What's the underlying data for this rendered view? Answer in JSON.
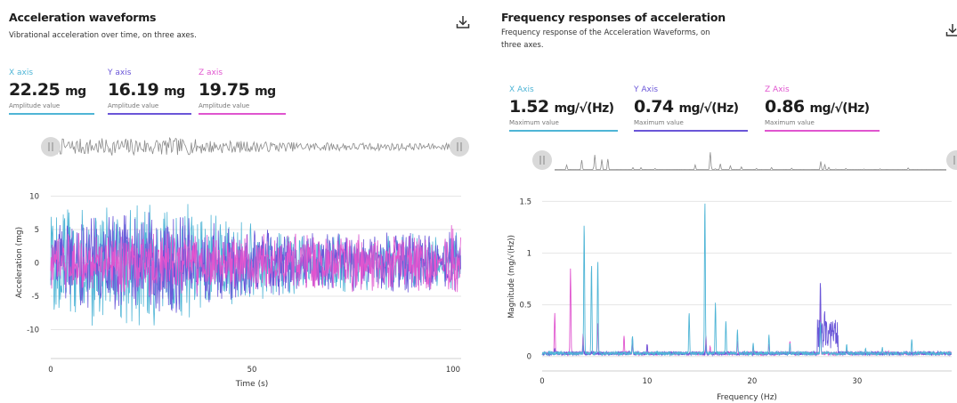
{
  "colors": {
    "x": "#4fb5d6",
    "y": "#6a56d8",
    "z": "#e055cf",
    "grid": "#e6e6e6",
    "nav": "#8c8c8c"
  },
  "left": {
    "title": "Acceleration waveforms",
    "subtitle": "Vibrational acceleration over time, on three axes.",
    "download_icon": "download-icon",
    "metrics": [
      {
        "axis": "X axis",
        "value": "22.25",
        "unit": "mg",
        "caption": "Amplitude value",
        "color_key": "x"
      },
      {
        "axis": "Y axis",
        "value": "16.19",
        "unit": "mg",
        "caption": "Amplitude value",
        "color_key": "y"
      },
      {
        "axis": "Z axis",
        "value": "19.75",
        "unit": "mg",
        "caption": "Amplitude value",
        "color_key": "z"
      }
    ]
  },
  "right": {
    "title": "Frequency responses of acceleration",
    "subtitle_lines": [
      "Frequency response of the Acceleration Waveforms, on",
      "three axes."
    ],
    "download_icon": "download-icon",
    "metrics": [
      {
        "axis": "X Axis",
        "value": "1.52",
        "unit": "mg/√(Hz)",
        "caption": "Maximum value",
        "color_key": "x"
      },
      {
        "axis": "Y Axis",
        "value": "0.74",
        "unit": "mg/√(Hz)",
        "caption": "Maximum value",
        "color_key": "y"
      },
      {
        "axis": "Z Axis",
        "value": "0.86",
        "unit": "mg/√(Hz)",
        "caption": "Maximum value",
        "color_key": "z"
      }
    ]
  },
  "chart_data": [
    {
      "type": "line",
      "xlabel": "Time (s)",
      "ylabel": "Acceleration (mg)",
      "xlim": [
        0,
        102
      ],
      "ylim": [
        -13,
        13
      ],
      "xticks": [
        0,
        50,
        100
      ],
      "yticks": [
        10,
        5,
        0,
        -5,
        -10
      ],
      "grid": true,
      "series": [
        {
          "key": "x",
          "envelope_x": [
            0,
            10,
            20,
            30,
            40,
            50,
            60,
            70,
            80,
            90,
            96,
            97,
            98,
            100,
            102
          ],
          "envelope_amp": [
            9.5,
            10.0,
            10.5,
            10.5,
            8.0,
            6.5,
            5.5,
            5.0,
            4.5,
            4.5,
            4.0,
            0.5,
            4.0,
            5.5,
            5.0
          ]
        },
        {
          "key": "y",
          "envelope_x": [
            0,
            10,
            20,
            30,
            40,
            50,
            60,
            70,
            80,
            90,
            96,
            97,
            98,
            100,
            102
          ],
          "envelope_amp": [
            6.5,
            7.0,
            8.0,
            8.5,
            6.5,
            5.5,
            5.0,
            4.5,
            5.0,
            6.0,
            4.0,
            0.5,
            4.0,
            6.0,
            4.5
          ]
        },
        {
          "key": "z",
          "envelope_x": [
            0,
            10,
            20,
            30,
            40,
            50,
            60,
            70,
            80,
            90,
            96,
            97,
            98,
            100,
            102
          ],
          "envelope_amp": [
            5.0,
            5.0,
            5.0,
            5.0,
            4.8,
            4.6,
            4.5,
            4.5,
            4.5,
            4.5,
            4.5,
            0.5,
            7.0,
            8.0,
            5.0
          ]
        }
      ]
    },
    {
      "type": "line",
      "xlabel": "Frequency (Hz)",
      "ylabel": "Magnitude (mg/√(Hz))",
      "xlim": [
        0,
        39
      ],
      "ylim": [
        -0.08,
        1.65
      ],
      "xticks": [
        0,
        10,
        20,
        30
      ],
      "yticks": [
        1.5,
        1.0,
        0.5,
        0
      ],
      "grid": true,
      "series": [
        {
          "key": "z",
          "peaks": [
            [
              1.2,
              0.42
            ],
            [
              2.7,
              0.85
            ],
            [
              3.9,
              0.22
            ],
            [
              5.3,
              0.33
            ],
            [
              7.8,
              0.2
            ],
            [
              8.6,
              0.12
            ],
            [
              10.0,
              0.12
            ],
            [
              15.6,
              0.2
            ],
            [
              16.0,
              0.1
            ],
            [
              18.6,
              0.15
            ],
            [
              20.1,
              0.1
            ],
            [
              21.6,
              0.12
            ],
            [
              23.6,
              0.15
            ],
            [
              26.5,
              0.55
            ],
            [
              29.0,
              0.06
            ],
            [
              33.0,
              0.05
            ]
          ]
        },
        {
          "key": "y",
          "peaks": [
            [
              1.2,
              0.08
            ],
            [
              3.9,
              0.12
            ],
            [
              8.6,
              0.18
            ],
            [
              10.0,
              0.12
            ],
            [
              15.6,
              0.12
            ],
            [
              26.5,
              0.73
            ],
            [
              26.9,
              0.45
            ],
            [
              27.3,
              0.22
            ],
            [
              28.0,
              0.08
            ]
          ]
        },
        {
          "key": "x",
          "peaks": [
            [
              4.0,
              1.3
            ],
            [
              4.7,
              0.9
            ],
            [
              5.3,
              0.94
            ],
            [
              8.6,
              0.2
            ],
            [
              14.0,
              0.43
            ],
            [
              15.5,
              1.52
            ],
            [
              16.5,
              0.52
            ],
            [
              17.5,
              0.35
            ],
            [
              18.6,
              0.26
            ],
            [
              20.1,
              0.13
            ],
            [
              21.6,
              0.21
            ],
            [
              23.6,
              0.13
            ],
            [
              26.5,
              0.34
            ],
            [
              29.0,
              0.12
            ],
            [
              30.8,
              0.08
            ],
            [
              32.4,
              0.09
            ],
            [
              35.2,
              0.17
            ]
          ]
        }
      ]
    }
  ]
}
